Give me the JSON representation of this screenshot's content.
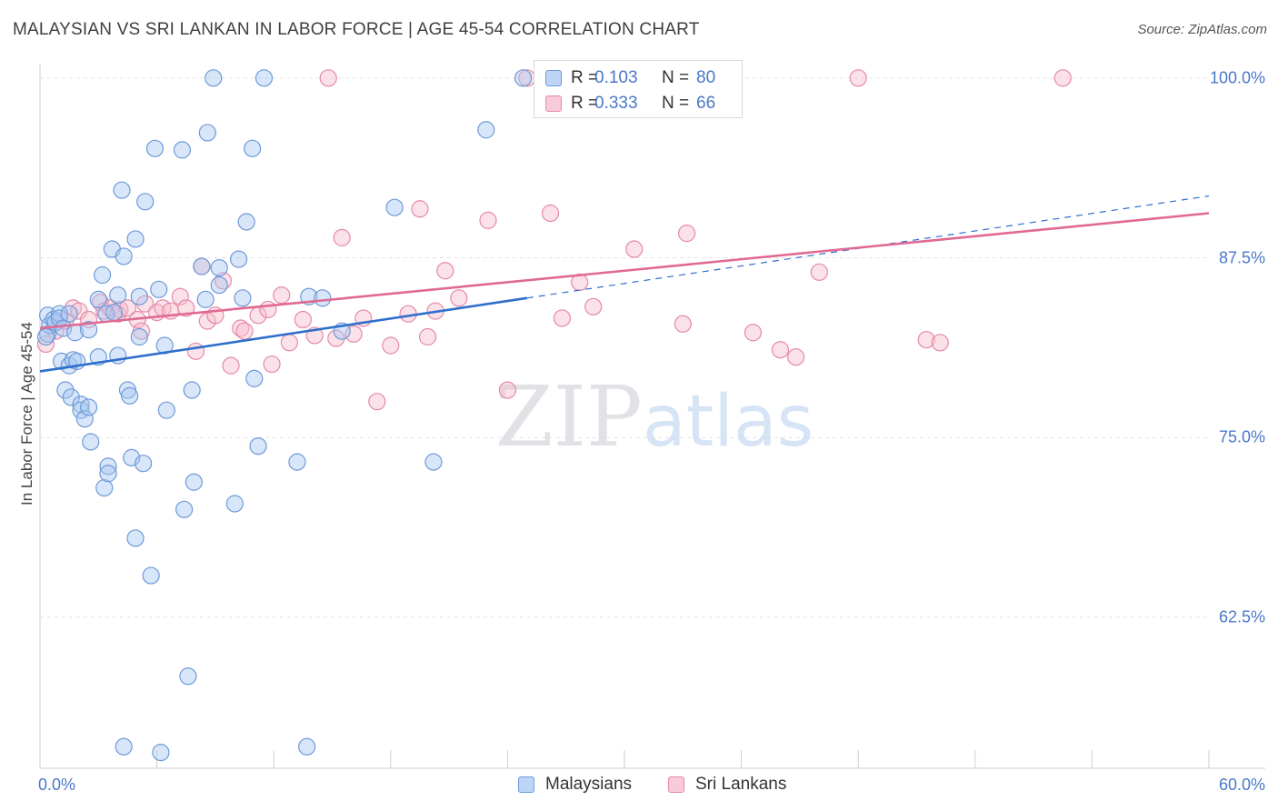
{
  "title": "MALAYSIAN VS SRI LANKAN IN LABOR FORCE | AGE 45-54 CORRELATION CHART",
  "source": "Source: ZipAtlas.com",
  "watermark": "ZIPatlas",
  "colors": {
    "blue_fill": "#a9c8f2",
    "blue_stroke": "#6f9ad8",
    "blue_line": "#2f6fcc",
    "pink_fill": "#f7bccd",
    "pink_stroke": "#e58aa8",
    "pink_line": "#e06a93",
    "tick_label": "#4a78c8",
    "grid": "#e3e3e3"
  },
  "legend": {
    "r_label": "R =",
    "n_label": "N =",
    "rows": [
      {
        "r": "0.103",
        "n": "80",
        "series": "Malaysians"
      },
      {
        "r": "0.333",
        "n": "66",
        "series": "Sri Lankans"
      }
    ]
  },
  "bottom_legend": [
    "Malaysians",
    "Sri Lankans"
  ],
  "chart_data": {
    "type": "scatter",
    "title": "MALAYSIAN VS SRI LANKAN IN LABOR FORCE | AGE 45-54 CORRELATION CHART",
    "xlabel": "",
    "ylabel": "In Labor Force | Age 45-54",
    "xlim": [
      0,
      60
    ],
    "ylim": [
      52,
      101
    ],
    "x_tick_labels": [
      "0.0%",
      "60.0%"
    ],
    "y_ticks": [
      62.5,
      75.0,
      87.5,
      100.0
    ],
    "y_tick_labels": [
      "62.5%",
      "75.0%",
      "87.5%",
      "100.0%"
    ],
    "grid": true,
    "legend_position": "top-center",
    "series": [
      {
        "name": "Malaysians",
        "r": 0.103,
        "n": 80,
        "trend": {
          "x": [
            0,
            25
          ],
          "y": [
            79.6,
            84.7
          ]
        },
        "trend_dashed": {
          "x": [
            25,
            60
          ],
          "y": [
            84.7,
            91.8
          ]
        },
        "points": [
          [
            0.4,
            82.2
          ],
          [
            0.4,
            83.5
          ],
          [
            0.5,
            82.8
          ],
          [
            0.7,
            83.2
          ],
          [
            0.8,
            83.0
          ],
          [
            1.0,
            83.6
          ],
          [
            1.0,
            83.3
          ],
          [
            1.1,
            80.3
          ],
          [
            1.2,
            82.6
          ],
          [
            1.3,
            78.3
          ],
          [
            1.5,
            83.6
          ],
          [
            1.5,
            80.0
          ],
          [
            1.6,
            77.8
          ],
          [
            1.7,
            80.4
          ],
          [
            1.8,
            82.3
          ],
          [
            1.9,
            80.3
          ],
          [
            2.1,
            77.3
          ],
          [
            2.1,
            76.9
          ],
          [
            2.3,
            76.3
          ],
          [
            2.5,
            77.1
          ],
          [
            2.5,
            82.5
          ],
          [
            2.6,
            74.7
          ],
          [
            3.0,
            84.6
          ],
          [
            3.0,
            80.6
          ],
          [
            3.2,
            86.3
          ],
          [
            3.3,
            71.5
          ],
          [
            3.4,
            83.6
          ],
          [
            3.5,
            73.0
          ],
          [
            3.5,
            72.5
          ],
          [
            3.7,
            88.1
          ],
          [
            3.8,
            83.7
          ],
          [
            4.0,
            80.7
          ],
          [
            4.0,
            84.9
          ],
          [
            4.2,
            92.2
          ],
          [
            4.3,
            87.6
          ],
          [
            4.3,
            53.5
          ],
          [
            4.5,
            78.3
          ],
          [
            4.6,
            77.9
          ],
          [
            4.7,
            73.6
          ],
          [
            4.9,
            88.8
          ],
          [
            4.9,
            68.0
          ],
          [
            5.1,
            84.8
          ],
          [
            5.1,
            82.0
          ],
          [
            5.3,
            73.2
          ],
          [
            5.4,
            91.4
          ],
          [
            5.7,
            65.4
          ],
          [
            5.9,
            95.1
          ],
          [
            6.1,
            85.3
          ],
          [
            6.2,
            53.1
          ],
          [
            6.4,
            81.4
          ],
          [
            6.5,
            76.9
          ],
          [
            7.3,
            95.0
          ],
          [
            7.4,
            70.0
          ],
          [
            7.6,
            58.4
          ],
          [
            7.8,
            78.3
          ],
          [
            7.9,
            71.9
          ],
          [
            8.3,
            86.9
          ],
          [
            8.5,
            84.6
          ],
          [
            8.6,
            96.2
          ],
          [
            8.9,
            100.0
          ],
          [
            9.2,
            85.6
          ],
          [
            9.2,
            86.8
          ],
          [
            10.0,
            70.4
          ],
          [
            10.2,
            87.4
          ],
          [
            10.4,
            84.7
          ],
          [
            10.6,
            90.0
          ],
          [
            10.9,
            95.1
          ],
          [
            11.0,
            79.1
          ],
          [
            11.2,
            74.4
          ],
          [
            11.5,
            100.0
          ],
          [
            13.2,
            73.3
          ],
          [
            13.7,
            53.5
          ],
          [
            13.8,
            84.8
          ],
          [
            14.5,
            84.7
          ],
          [
            15.5,
            82.4
          ],
          [
            18.2,
            91.0
          ],
          [
            20.2,
            73.3
          ],
          [
            22.9,
            96.4
          ],
          [
            24.8,
            100.0
          ],
          [
            0.3,
            82.0
          ]
        ]
      },
      {
        "name": "Sri Lankans",
        "r": 0.333,
        "n": 66,
        "trend": {
          "x": [
            0,
            60
          ],
          "y": [
            82.6,
            90.6
          ]
        },
        "points": [
          [
            0.3,
            81.5
          ],
          [
            0.8,
            82.4
          ],
          [
            1.3,
            83.1
          ],
          [
            1.7,
            84.0
          ],
          [
            2.0,
            83.8
          ],
          [
            2.5,
            83.2
          ],
          [
            3.1,
            84.4
          ],
          [
            3.3,
            83.8
          ],
          [
            3.6,
            84.0
          ],
          [
            4.0,
            83.6
          ],
          [
            4.1,
            83.9
          ],
          [
            4.5,
            84.0
          ],
          [
            5.0,
            83.2
          ],
          [
            5.2,
            82.4
          ],
          [
            5.4,
            84.3
          ],
          [
            6.0,
            83.7
          ],
          [
            6.3,
            84.0
          ],
          [
            6.7,
            83.8
          ],
          [
            7.2,
            84.8
          ],
          [
            7.5,
            84.0
          ],
          [
            8.0,
            81.0
          ],
          [
            8.3,
            86.9
          ],
          [
            8.6,
            83.1
          ],
          [
            9.0,
            83.5
          ],
          [
            9.4,
            85.9
          ],
          [
            9.8,
            80.0
          ],
          [
            10.3,
            82.6
          ],
          [
            10.5,
            82.4
          ],
          [
            11.2,
            83.5
          ],
          [
            11.7,
            83.9
          ],
          [
            11.9,
            80.1
          ],
          [
            12.4,
            84.9
          ],
          [
            12.8,
            81.6
          ],
          [
            13.5,
            83.2
          ],
          [
            14.1,
            82.1
          ],
          [
            14.8,
            100.0
          ],
          [
            15.2,
            81.9
          ],
          [
            15.5,
            88.9
          ],
          [
            16.1,
            82.2
          ],
          [
            16.6,
            83.3
          ],
          [
            17.3,
            77.5
          ],
          [
            18.0,
            81.4
          ],
          [
            18.9,
            83.6
          ],
          [
            19.5,
            90.9
          ],
          [
            19.9,
            82.0
          ],
          [
            20.3,
            83.8
          ],
          [
            20.8,
            86.6
          ],
          [
            21.5,
            84.7
          ],
          [
            23.0,
            90.1
          ],
          [
            24.0,
            78.3
          ],
          [
            25.0,
            100.0
          ],
          [
            26.2,
            90.6
          ],
          [
            26.8,
            83.3
          ],
          [
            27.7,
            85.8
          ],
          [
            28.4,
            84.1
          ],
          [
            30.5,
            88.1
          ],
          [
            33.0,
            82.9
          ],
          [
            33.2,
            89.2
          ],
          [
            36.6,
            82.3
          ],
          [
            38.0,
            81.1
          ],
          [
            38.8,
            80.6
          ],
          [
            40.0,
            86.5
          ],
          [
            42.0,
            100.0
          ],
          [
            45.5,
            81.8
          ],
          [
            46.2,
            81.6
          ],
          [
            52.5,
            100.0
          ]
        ]
      }
    ]
  }
}
